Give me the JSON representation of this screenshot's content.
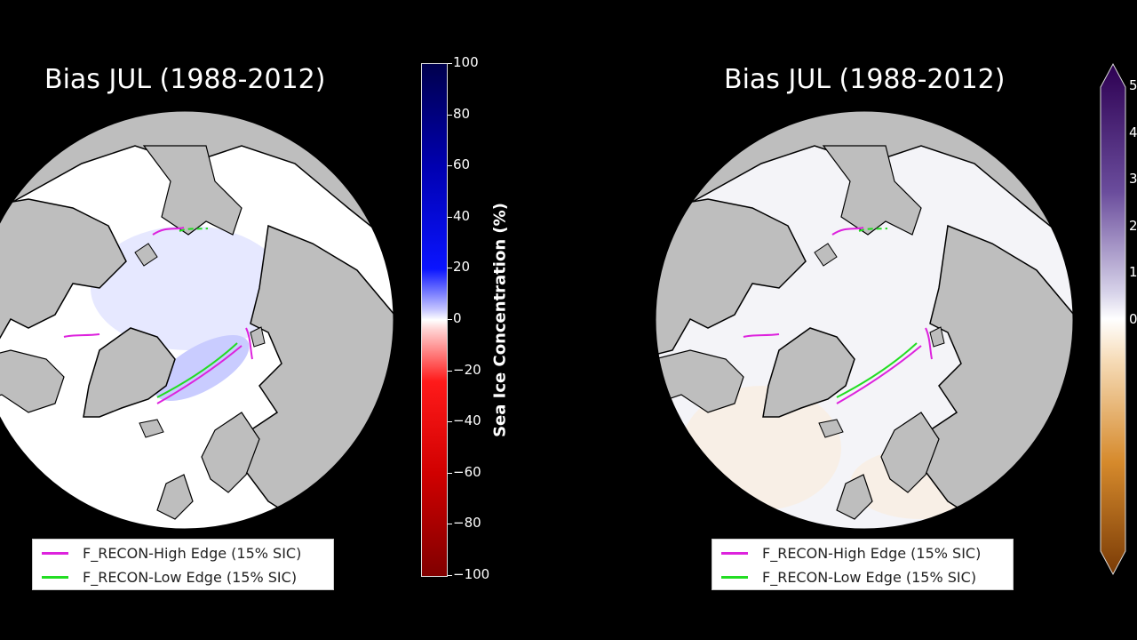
{
  "panels": [
    {
      "title": "Bias JUL (1988-2012)",
      "legend": [
        {
          "label": "F_RECON-High Edge (15% SIC)",
          "color": "#dd22dd"
        },
        {
          "label": "F_RECON-Low Edge (15% SIC)",
          "color": "#22dd22"
        }
      ]
    },
    {
      "title": "Bias JUL (1988-2012)",
      "legend": [
        {
          "label": "F_RECON-High Edge (15% SIC)",
          "color": "#dd22dd"
        },
        {
          "label": "F_RECON-Low Edge (15% SIC)",
          "color": "#22dd22"
        }
      ]
    }
  ],
  "colorbar_left": {
    "label": "Sea Ice Concentration (%)",
    "ticks": [
      "100",
      "80",
      "60",
      "40",
      "20",
      "0",
      "−20",
      "−40",
      "−60",
      "−80",
      "−100"
    ],
    "range": [
      -100,
      100
    ]
  },
  "colorbar_right": {
    "ticks": [
      "5",
      "4",
      "3",
      "2",
      "1",
      "0"
    ]
  },
  "colors": {
    "background": "#000000",
    "land": "#bebebe",
    "ocean": "#ffffff",
    "high_edge": "#dd22dd",
    "low_edge": "#22dd22"
  }
}
